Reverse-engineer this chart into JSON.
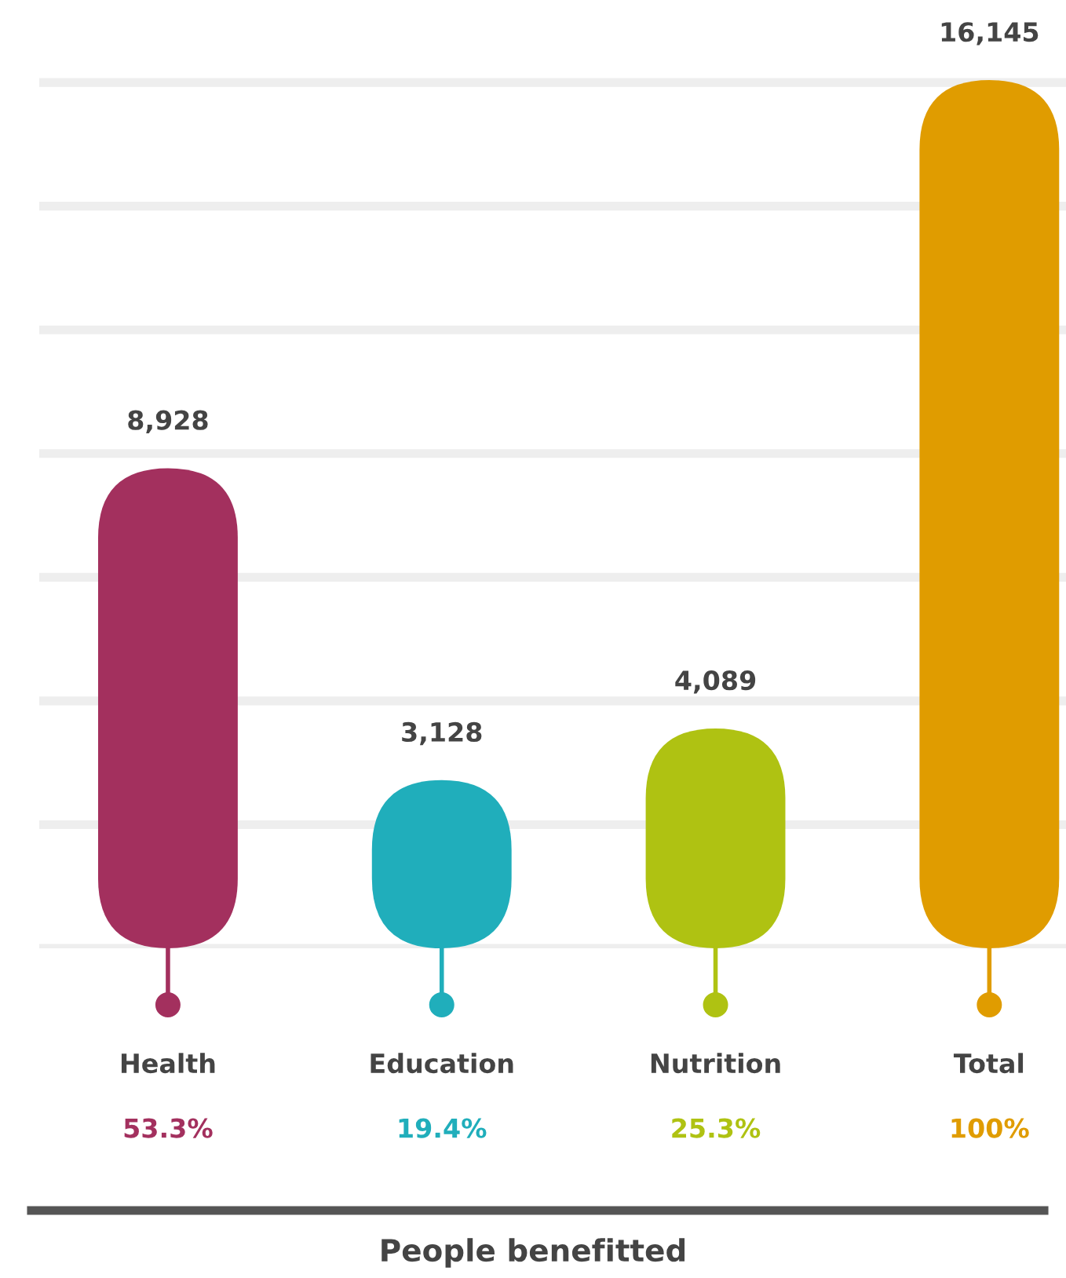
{
  "chart_data": {
    "type": "bar",
    "categories": [
      "Health",
      "Education",
      "Nutrition",
      "Total"
    ],
    "values": [
      8928,
      3128,
      4089,
      16145
    ],
    "colors": [
      "#a3305e",
      "#20aebb",
      "#afc212",
      "#e09c00"
    ],
    "data_labels": true,
    "value_labels": [
      "8,928",
      "3,128",
      "4,089",
      "16,145"
    ],
    "yticks": [
      {
        "value": 0,
        "label": null
      },
      {
        "value": 2300,
        "label": null
      },
      {
        "value": 4600,
        "label": null
      },
      {
        "value": 6900,
        "label": null
      },
      {
        "value": 9200,
        "label": null
      },
      {
        "value": 11500,
        "label": null
      },
      {
        "value": 13800,
        "label": null
      },
      {
        "value": 16100,
        "label": null
      }
    ],
    "grid": "y",
    "annotations": [
      "53.3%",
      "19.4%",
      "25.3%",
      "100%",
      "People benefitted"
    ]
  }
}
